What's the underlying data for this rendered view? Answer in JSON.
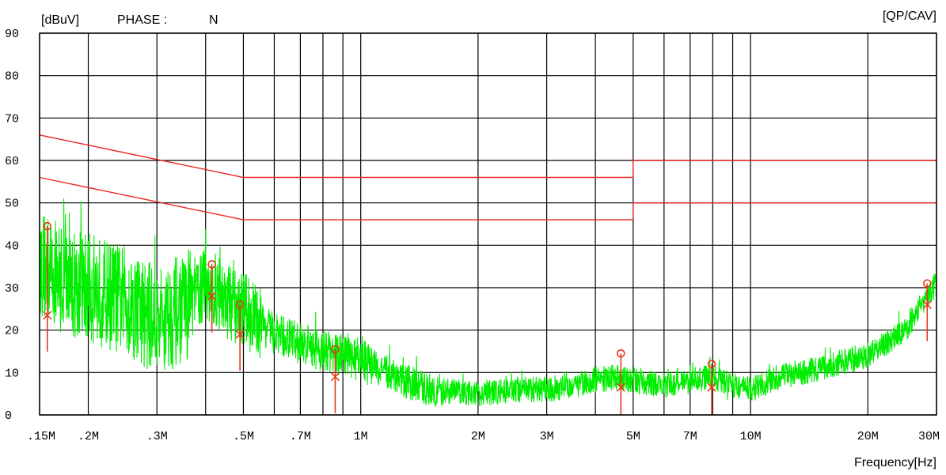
{
  "header": {
    "unit_label": "[dBuV]",
    "phase_label": "PHASE :",
    "phase_value": "N",
    "detector_label": "[QP/CAV]"
  },
  "colors": {
    "trace": "#00ee00",
    "limit": "#ee2222",
    "marker": "#e53a1a",
    "grid": "#000000",
    "phase_value": "#22dd22"
  },
  "chart_data": {
    "type": "line",
    "title": "",
    "xlabel": "Frequency[Hz]",
    "ylabel": "[dBuV]",
    "x_scale": "log",
    "xlim": [
      150000,
      30000000
    ],
    "ylim": [
      0,
      90
    ],
    "grid": true,
    "y_ticks": [
      {
        "value": 0,
        "label": "0"
      },
      {
        "value": 10,
        "label": "10"
      },
      {
        "value": 20,
        "label": "20"
      },
      {
        "value": 30,
        "label": "30"
      },
      {
        "value": 40,
        "label": "40"
      },
      {
        "value": 50,
        "label": "50"
      },
      {
        "value": 60,
        "label": "60"
      },
      {
        "value": 70,
        "label": "70"
      },
      {
        "value": 80,
        "label": "80"
      },
      {
        "value": 90,
        "label": "90"
      }
    ],
    "x_ticks": [
      {
        "value": 150000,
        "label": ".15M"
      },
      {
        "value": 200000,
        "label": ".2M"
      },
      {
        "value": 300000,
        "label": ".3M"
      },
      {
        "value": 500000,
        "label": ".5M"
      },
      {
        "value": 700000,
        "label": ".7M"
      },
      {
        "value": 1000000,
        "label": "1M"
      },
      {
        "value": 2000000,
        "label": "2M"
      },
      {
        "value": 3000000,
        "label": "3M"
      },
      {
        "value": 5000000,
        "label": "5M"
      },
      {
        "value": 7000000,
        "label": "7M"
      },
      {
        "value": 10000000,
        "label": "10M"
      },
      {
        "value": 20000000,
        "label": "20M"
      },
      {
        "value": 30000000,
        "label": "30M"
      }
    ],
    "extra_gridlines_x": [
      400000,
      600000,
      800000,
      900000,
      4000000,
      6000000,
      8000000,
      9000000
    ],
    "limit_lines": [
      {
        "name": "QP",
        "points": [
          [
            150000,
            66
          ],
          [
            500000,
            56
          ],
          [
            5000000,
            56
          ],
          [
            5000000,
            60
          ],
          [
            30000000,
            60
          ]
        ]
      },
      {
        "name": "AV",
        "points": [
          [
            150000,
            56
          ],
          [
            500000,
            46
          ],
          [
            5000000,
            46
          ],
          [
            5000000,
            50
          ],
          [
            30000000,
            50
          ]
        ]
      }
    ],
    "series": [
      {
        "type": "spectrum",
        "envelope_x": [
          150000,
          160000,
          180000,
          200000,
          250000,
          300000,
          350000,
          400000,
          450000,
          500000,
          550000,
          600000,
          700000,
          800000,
          900000,
          1000000,
          1100000,
          1300000,
          1500000,
          2000000,
          2500000,
          3000000,
          3500000,
          4000000,
          4500000,
          5000000,
          6000000,
          7000000,
          8000000,
          9000000,
          10000000,
          12000000,
          15000000,
          18000000,
          20000000,
          25000000,
          28000000,
          30000000
        ],
        "envelope_y": [
          36,
          34,
          31,
          30,
          27,
          22,
          25,
          31,
          27,
          25,
          22,
          19,
          17,
          15,
          14,
          13,
          11,
          8,
          6,
          5,
          6,
          6,
          7,
          8,
          9,
          8,
          7,
          8,
          9,
          7,
          6,
          9,
          11,
          13,
          14,
          20,
          27,
          31
        ]
      }
    ],
    "markers": [
      {
        "freq": 157000,
        "qp": 44.5,
        "avg": 23.5
      },
      {
        "freq": 415000,
        "qp": 35.5,
        "avg": 28
      },
      {
        "freq": 490000,
        "qp": 26,
        "avg": 19
      },
      {
        "freq": 860000,
        "qp": 15.5,
        "avg": 9
      },
      {
        "freq": 4650000,
        "qp": 14.5,
        "avg": 6.5
      },
      {
        "freq": 7950000,
        "qp": 12,
        "avg": 6.5
      },
      {
        "freq": 28400000,
        "qp": 31,
        "avg": 26
      }
    ]
  }
}
